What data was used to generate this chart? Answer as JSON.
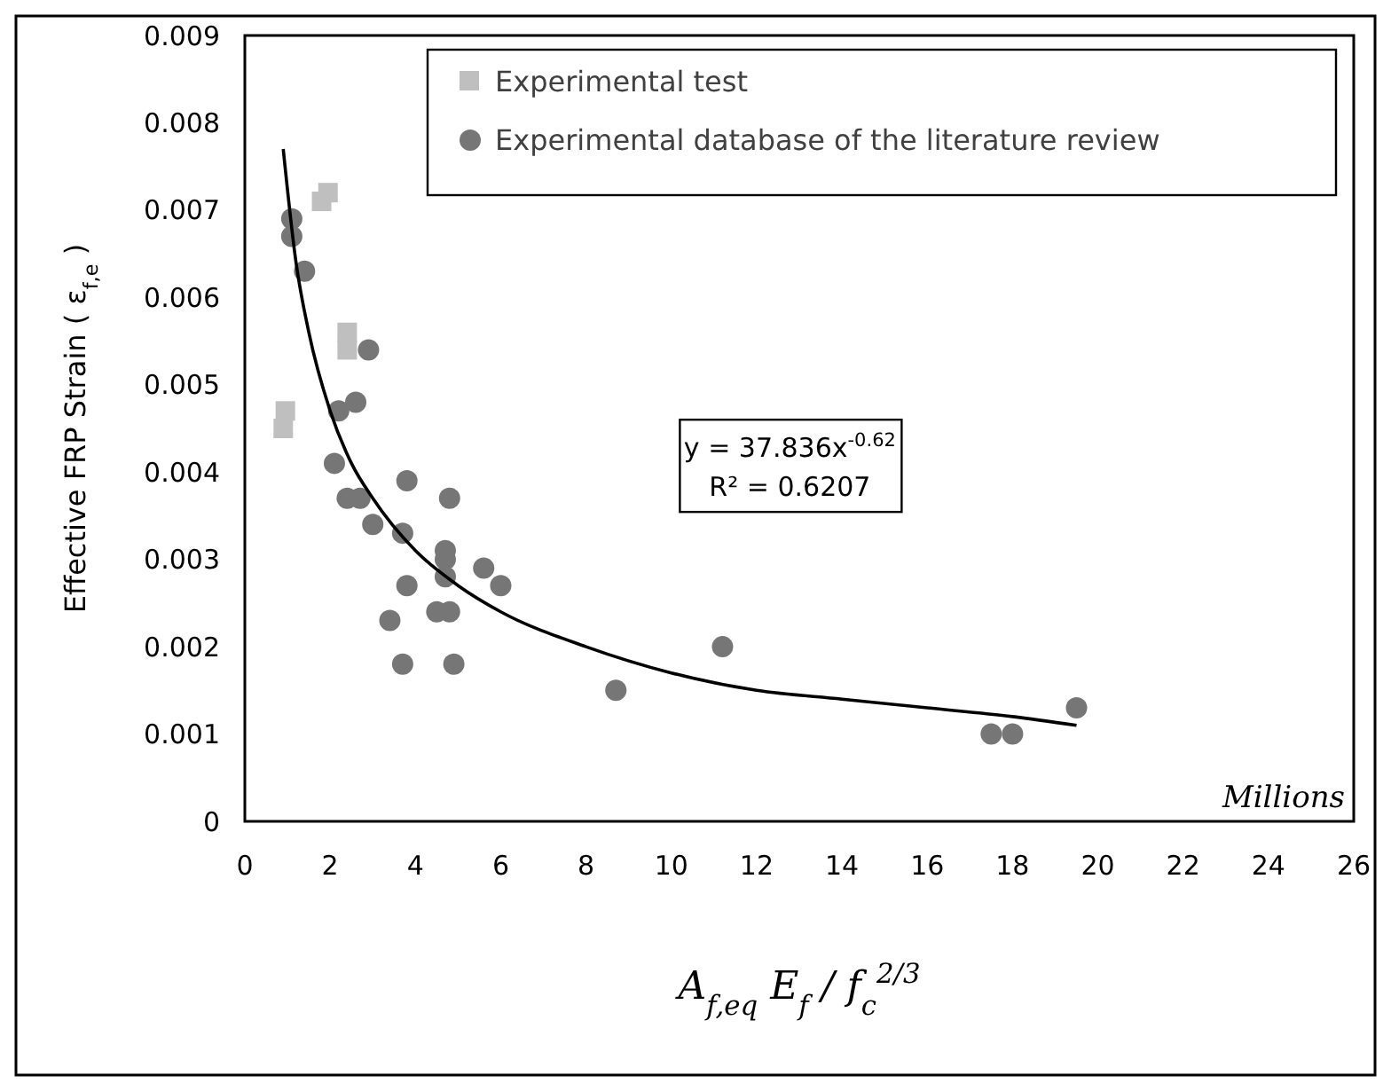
{
  "chart_data": {
    "type": "scatter",
    "xlabel": "A$_{f,eq}$ E$_{f}$ / f$_{c}$$^{2/3}$",
    "ylabel": "Effective FRP Strain ( ε$_{f,e}$ )",
    "xlim": [
      0,
      26
    ],
    "xticks": [
      0,
      2,
      4,
      6,
      8,
      10,
      12,
      14,
      16,
      18,
      20,
      22,
      24,
      26
    ],
    "ylim": [
      0,
      0.009
    ],
    "yticks": [
      0,
      0.001,
      0.002,
      0.003,
      0.004,
      0.005,
      0.006,
      0.007,
      0.008,
      0.009
    ],
    "grid": false,
    "legend": "top right",
    "series": [
      {
        "name": "Experimental test",
        "color": "#bfbfbf",
        "marker": "square",
        "x": [
          0.9,
          0.95,
          1.8,
          1.95,
          2.4,
          2.4
        ],
        "values": [
          0.0045,
          0.0047,
          0.0071,
          0.0072,
          0.0054,
          0.0056
        ]
      },
      {
        "name": "Experimental database of the literature review",
        "color": "#767676",
        "marker": "circle",
        "x": [
          1.1,
          1.1,
          1.4,
          2.9,
          2.2,
          2.6,
          2.1,
          2.4,
          2.7,
          3.8,
          4.8,
          3.0,
          3.7,
          4.7,
          4.7,
          4.7,
          5.6,
          6.0,
          3.8,
          4.5,
          4.8,
          3.4,
          3.7,
          4.9,
          8.7,
          11.2,
          17.5,
          18.0,
          19.5
        ],
        "values": [
          0.0069,
          0.0067,
          0.0063,
          0.0054,
          0.0047,
          0.0048,
          0.0041,
          0.0037,
          0.0037,
          0.0039,
          0.0037,
          0.0034,
          0.0033,
          0.0031,
          0.003,
          0.0028,
          0.0029,
          0.0027,
          0.0027,
          0.0024,
          0.0024,
          0.0023,
          0.0018,
          0.0018,
          0.0015,
          0.002,
          0.001,
          0.001,
          0.0013
        ]
      },
      {
        "type": "line",
        "color": "#000000",
        "marker": "none",
        "line_style": "solid",
        "x": [
          0.9,
          1.2,
          1.5,
          2,
          2.5,
          3,
          4,
          5,
          6,
          8,
          10,
          12,
          14,
          16,
          18,
          19.5
        ],
        "values": [
          0.0077,
          0.0064,
          0.0056,
          0.0047,
          0.0041,
          0.0037,
          0.0031,
          0.0027,
          0.0024,
          0.002,
          0.0017,
          0.0015,
          0.0014,
          0.0013,
          0.0012,
          0.0011
        ]
      }
    ],
    "annotations": [
      "y = 37.836x$^{-0.62}$",
      "R² = 0.6207",
      "Millions"
    ]
  }
}
